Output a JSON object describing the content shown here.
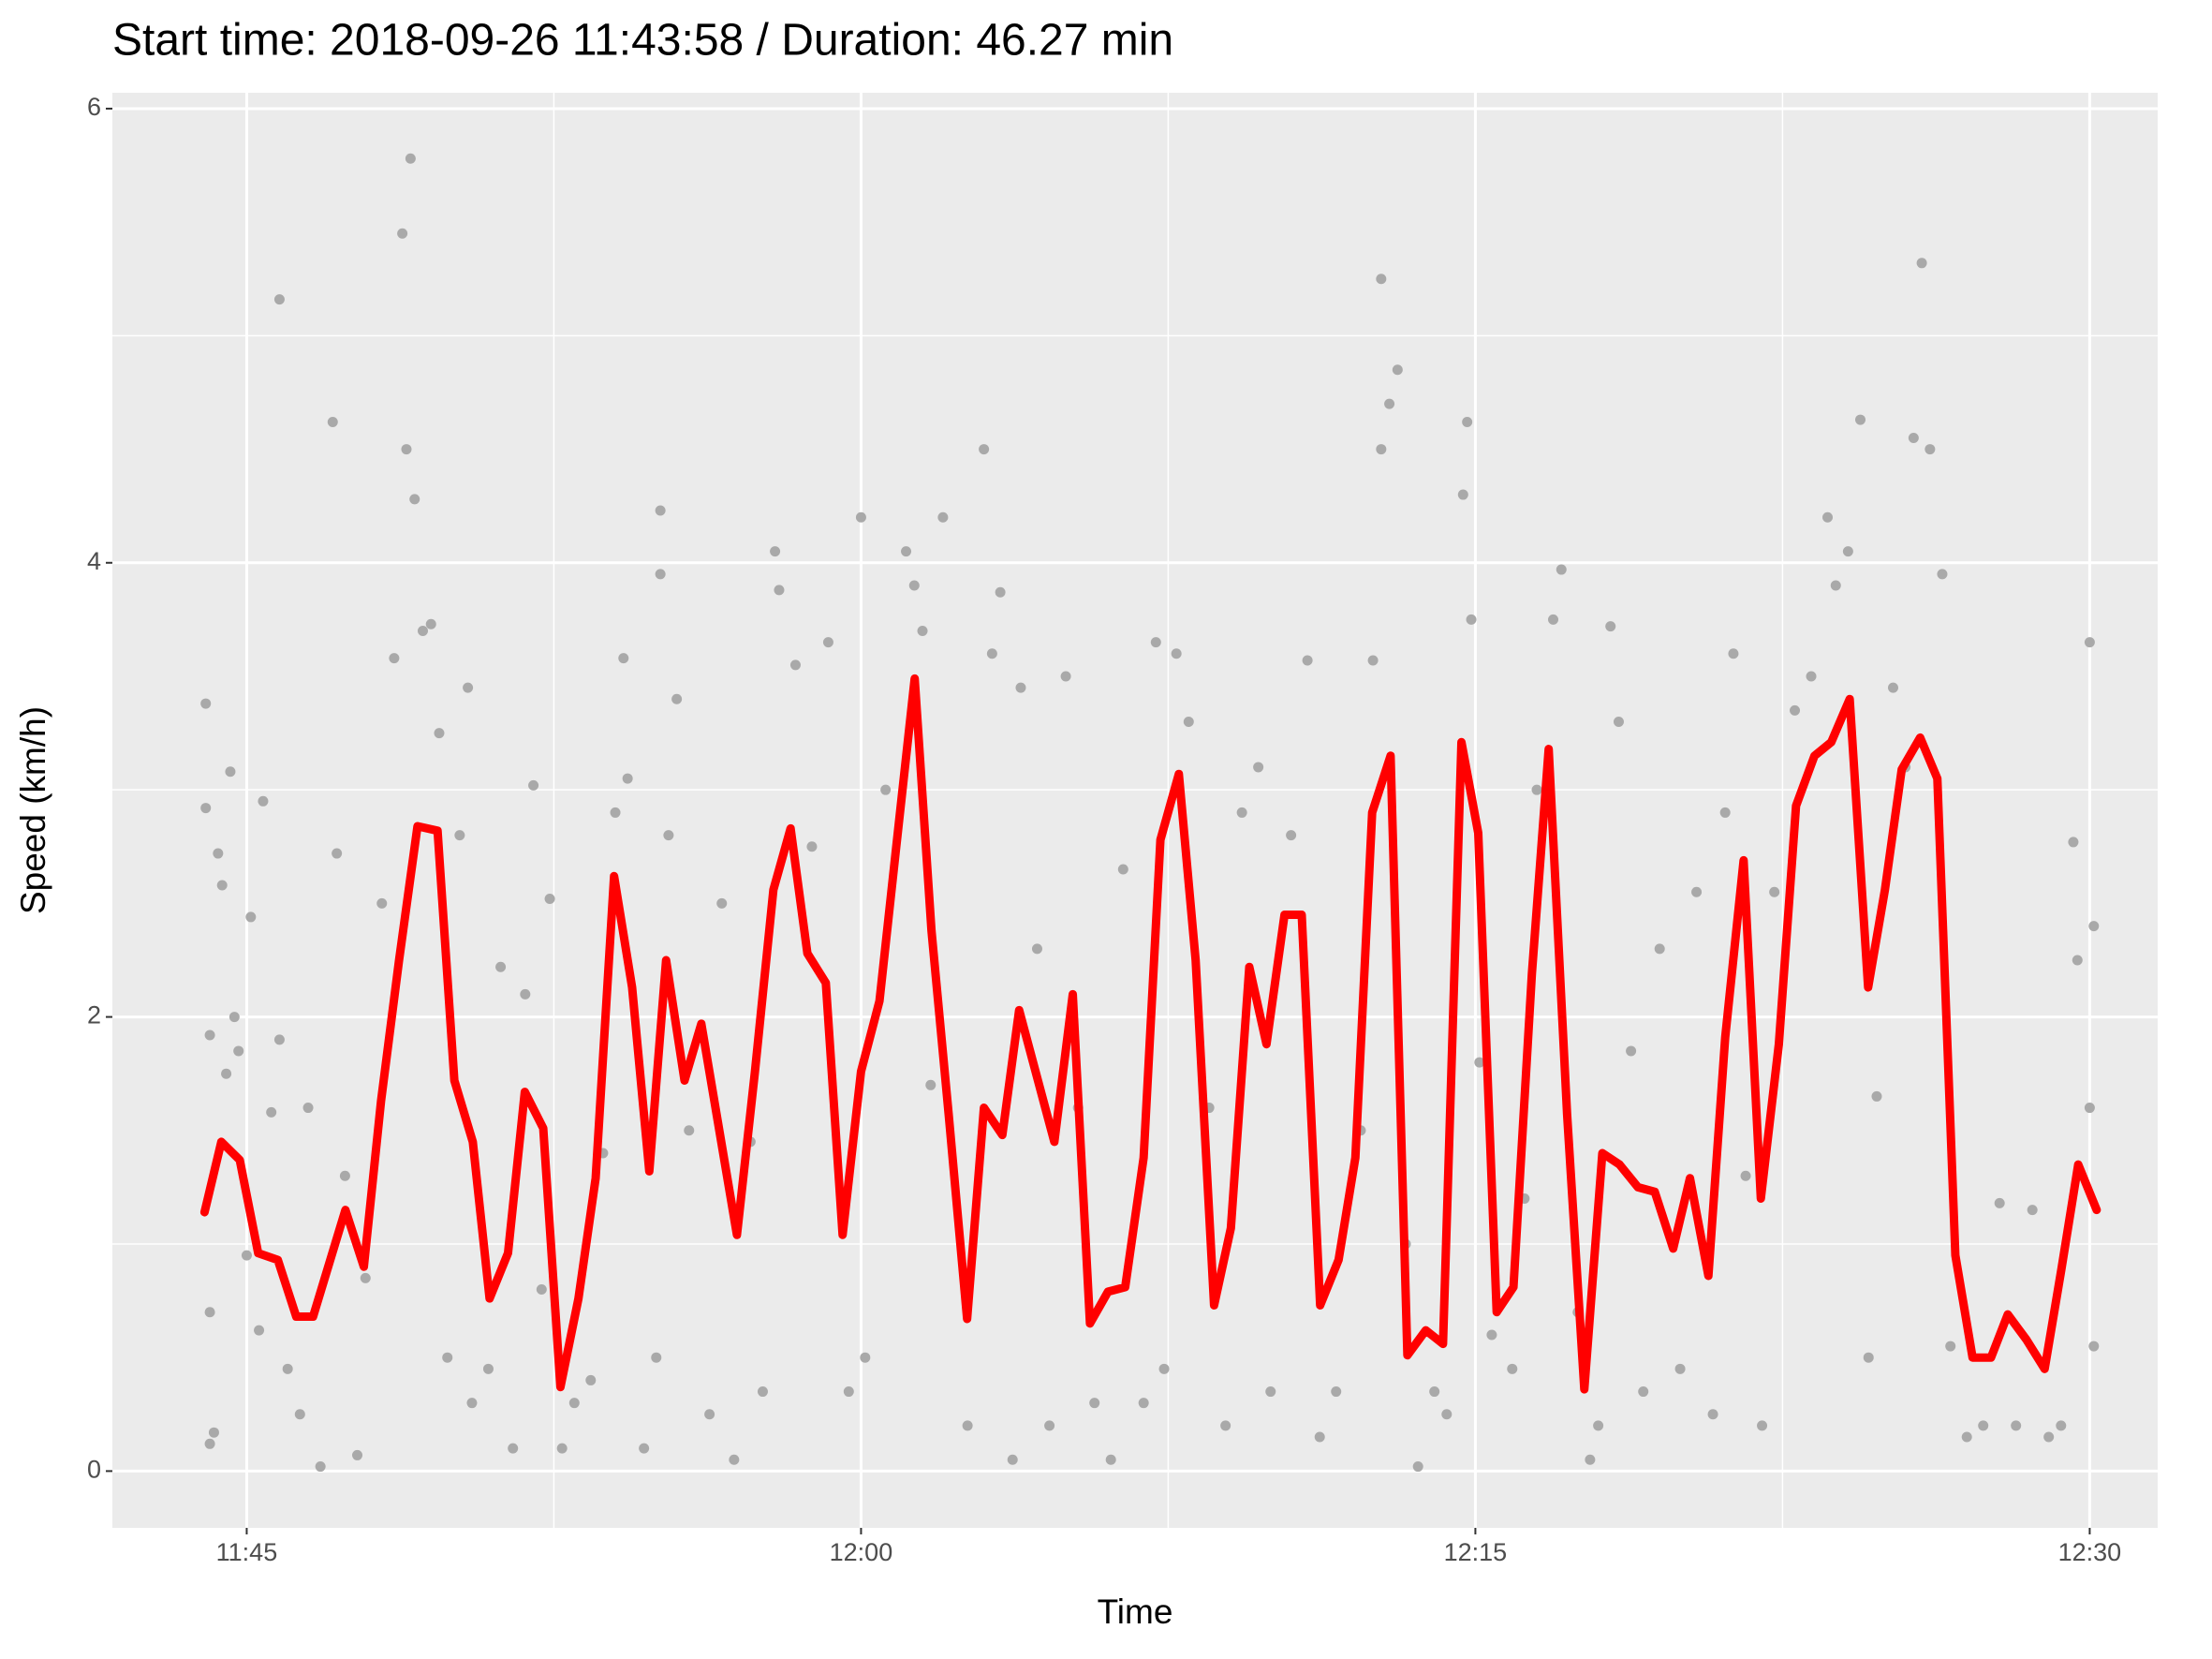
{
  "chart_data": {
    "type": "scatter",
    "title": "Start time: 2018-09-26 11:43:58 / Duration: 46.27 min",
    "x_label": "Time",
    "y_label": "Speed (km/h)",
    "panel_color": "#ebebeb",
    "grid": true,
    "xlim": [
      701.72,
      751.66
    ],
    "ylim": [
      -0.25,
      6.07
    ],
    "xticks": [
      {
        "value": 705,
        "label": "11:45"
      },
      {
        "value": 720,
        "label": "12:00"
      },
      {
        "value": 735,
        "label": "12:15"
      },
      {
        "value": 750,
        "label": "12:30"
      }
    ],
    "yticks": [
      0,
      2,
      4,
      6
    ],
    "series": [
      {
        "type": "scatter",
        "color": "#a9a9a9",
        "x": [
          704.0,
          704.0,
          704.1,
          704.1,
          704.1,
          704.2,
          704.3,
          704.4,
          704.5,
          704.6,
          704.7,
          704.8,
          705.0,
          705.1,
          705.3,
          705.4,
          705.6,
          705.8,
          705.8,
          706.0,
          706.3,
          706.5,
          706.8,
          707.1,
          707.2,
          707.4,
          707.7,
          707.9,
          708.3,
          708.6,
          708.8,
          708.9,
          709.0,
          709.1,
          709.3,
          709.5,
          709.7,
          709.9,
          710.2,
          710.4,
          710.5,
          710.9,
          711.2,
          711.5,
          711.8,
          712.0,
          712.2,
          712.4,
          712.7,
          713.0,
          713.4,
          713.7,
          714.0,
          714.2,
          714.3,
          714.7,
          715.0,
          715.1,
          715.1,
          715.3,
          715.5,
          715.8,
          716.3,
          716.6,
          716.9,
          717.3,
          717.6,
          717.9,
          718.0,
          718.4,
          718.8,
          719.2,
          719.7,
          720.0,
          720.1,
          720.6,
          721.1,
          721.3,
          721.5,
          721.7,
          722.0,
          722.6,
          723.0,
          723.2,
          723.4,
          723.7,
          723.9,
          724.3,
          724.6,
          725.0,
          725.3,
          725.7,
          726.1,
          726.4,
          726.9,
          727.2,
          727.4,
          727.7,
          728.0,
          728.5,
          728.9,
          729.3,
          729.7,
          730.0,
          730.5,
          730.9,
          731.2,
          731.6,
          732.2,
          732.5,
          732.7,
          732.7,
          732.9,
          733.1,
          733.3,
          733.6,
          734.0,
          734.3,
          734.7,
          734.8,
          734.9,
          735.1,
          735.4,
          735.9,
          736.2,
          736.5,
          736.9,
          737.1,
          737.5,
          737.8,
          738.0,
          738.3,
          738.5,
          738.8,
          739.1,
          739.5,
          740.0,
          740.4,
          740.8,
          741.1,
          741.3,
          741.6,
          742.0,
          742.3,
          742.8,
          743.2,
          743.6,
          743.8,
          744.1,
          744.4,
          744.6,
          744.8,
          745.2,
          745.5,
          745.7,
          745.9,
          746.1,
          746.4,
          746.6,
          747.0,
          747.4,
          747.8,
          748.2,
          748.6,
          749.0,
          749.3,
          749.6,
          749.7,
          750.0,
          750.0,
          750.1,
          750.1
        ],
        "values": [
          3.38,
          2.92,
          1.92,
          0.7,
          0.12,
          0.17,
          2.72,
          2.58,
          1.75,
          3.08,
          2.0,
          1.85,
          0.95,
          2.44,
          0.62,
          2.95,
          1.58,
          1.9,
          5.16,
          0.45,
          0.25,
          1.6,
          0.02,
          4.62,
          2.72,
          1.3,
          0.07,
          0.85,
          2.5,
          3.58,
          5.45,
          4.5,
          5.78,
          4.28,
          3.7,
          3.73,
          3.25,
          0.5,
          2.8,
          3.45,
          0.3,
          0.45,
          2.22,
          0.1,
          2.1,
          3.02,
          0.8,
          2.52,
          0.1,
          0.3,
          0.4,
          1.4,
          2.9,
          3.58,
          3.05,
          0.1,
          0.5,
          3.95,
          4.23,
          2.8,
          3.4,
          1.5,
          0.25,
          2.5,
          0.05,
          1.45,
          0.35,
          4.05,
          3.88,
          3.55,
          2.75,
          3.65,
          0.35,
          4.2,
          0.5,
          3.0,
          4.05,
          3.9,
          3.7,
          1.7,
          4.2,
          0.2,
          4.5,
          3.6,
          3.87,
          0.05,
          3.45,
          2.3,
          0.2,
          3.5,
          1.6,
          0.3,
          0.05,
          2.65,
          0.3,
          3.65,
          0.45,
          3.6,
          3.3,
          1.6,
          0.2,
          2.9,
          3.1,
          0.35,
          2.8,
          3.57,
          0.15,
          0.35,
          1.5,
          3.57,
          4.5,
          5.25,
          4.7,
          4.85,
          1.0,
          0.02,
          0.35,
          0.25,
          4.3,
          4.62,
          3.75,
          1.8,
          0.6,
          0.45,
          1.2,
          3.0,
          3.75,
          3.97,
          0.7,
          0.05,
          0.2,
          3.72,
          3.3,
          1.85,
          0.35,
          2.3,
          0.45,
          2.55,
          0.25,
          2.9,
          3.6,
          1.3,
          0.2,
          2.55,
          3.35,
          3.5,
          4.2,
          3.9,
          4.05,
          4.63,
          0.5,
          1.65,
          3.45,
          3.1,
          4.55,
          5.32,
          4.5,
          3.95,
          0.55,
          0.15,
          0.2,
          1.18,
          0.2,
          1.15,
          0.15,
          0.2,
          2.77,
          2.25,
          1.6,
          3.65,
          2.4,
          0.55
        ]
      },
      {
        "type": "line",
        "color": "#ff0000",
        "x": [
          703.97,
          704.38,
          704.83,
          705.28,
          705.76,
          706.21,
          706.62,
          707.41,
          707.86,
          708.28,
          708.72,
          709.17,
          709.66,
          710.07,
          710.52,
          710.93,
          711.38,
          711.79,
          712.24,
          712.66,
          713.1,
          713.52,
          713.97,
          714.41,
          714.83,
          715.24,
          715.69,
          716.1,
          716.97,
          717.41,
          717.86,
          718.28,
          718.69,
          719.14,
          719.55,
          720.0,
          720.45,
          720.86,
          721.31,
          721.72,
          722.14,
          722.59,
          723.0,
          723.45,
          723.86,
          724.72,
          725.17,
          725.59,
          726.03,
          726.45,
          726.9,
          727.31,
          727.76,
          728.17,
          728.62,
          729.03,
          729.48,
          729.9,
          730.34,
          730.76,
          731.21,
          731.66,
          732.07,
          732.48,
          732.93,
          733.34,
          733.79,
          734.21,
          734.66,
          735.07,
          735.52,
          735.93,
          736.38,
          736.79,
          737.24,
          737.66,
          738.1,
          738.52,
          738.97,
          739.38,
          739.83,
          740.24,
          740.69,
          741.1,
          741.55,
          741.97,
          742.41,
          742.83,
          743.28,
          743.69,
          744.14,
          744.59,
          745.0,
          745.41,
          745.86,
          746.28,
          746.72,
          747.14,
          747.59,
          748.0,
          748.45,
          748.9,
          749.31,
          749.72,
          750.17
        ],
        "values": [
          1.14,
          1.45,
          1.37,
          0.96,
          0.93,
          0.68,
          0.68,
          1.15,
          0.9,
          1.63,
          2.25,
          2.84,
          2.82,
          1.72,
          1.45,
          0.76,
          0.96,
          1.67,
          1.51,
          0.37,
          0.76,
          1.29,
          2.62,
          2.13,
          1.32,
          2.25,
          1.72,
          1.97,
          1.04,
          1.76,
          2.56,
          2.83,
          2.28,
          2.15,
          1.04,
          1.76,
          2.07,
          2.75,
          3.49,
          2.38,
          1.57,
          0.67,
          1.6,
          1.48,
          2.03,
          1.45,
          2.1,
          0.65,
          0.79,
          0.81,
          1.38,
          2.78,
          3.07,
          2.25,
          0.73,
          1.07,
          2.22,
          1.88,
          2.45,
          2.45,
          0.73,
          0.93,
          1.38,
          2.9,
          3.15,
          0.51,
          0.62,
          0.56,
          3.21,
          2.81,
          0.7,
          0.81,
          2.19,
          3.18,
          1.57,
          0.36,
          1.4,
          1.35,
          1.25,
          1.23,
          0.98,
          1.29,
          0.86,
          1.91,
          2.69,
          1.2,
          1.88,
          2.93,
          3.15,
          3.21,
          3.4,
          2.13,
          2.56,
          3.09,
          3.23,
          3.05,
          0.95,
          0.5,
          0.5,
          0.69,
          0.58,
          0.45,
          0.89,
          1.35,
          1.15
        ]
      }
    ]
  }
}
